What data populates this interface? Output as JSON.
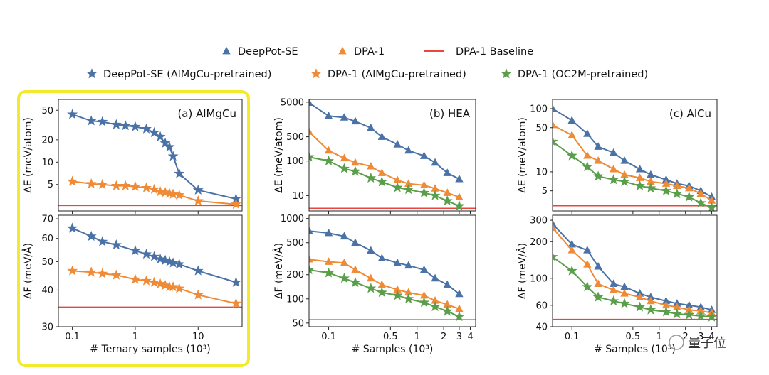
{
  "legend": {
    "row1": [
      {
        "label": "DeepPot-SE",
        "marker": "triangle",
        "color": "#4a72a6"
      },
      {
        "label": "DPA-1",
        "marker": "triangle",
        "color": "#ef8a36"
      },
      {
        "label": "DPA-1 Baseline",
        "marker": "line",
        "color": "#e8463e"
      }
    ],
    "row2": [
      {
        "label": "DeepPot-SE (AlMgCu-pretrained)",
        "marker": "star",
        "color": "#4a72a6"
      },
      {
        "label": "DPA-1 (AlMgCu-pretrained)",
        "marker": "star",
        "color": "#ef8a36"
      },
      {
        "label": "DPA-1 (OC2M-pretrained)",
        "marker": "star",
        "color": "#5a9e4b"
      }
    ]
  },
  "colors": {
    "blue": "#4a72a6",
    "orange": "#ef8a36",
    "green": "#5a9e4b",
    "red": "#e8463e",
    "highlight": "#f2ea2a"
  },
  "watermark": "量子位",
  "chart_data": [
    {
      "type": "line",
      "panel": "(a) AlMgCu",
      "metric": "energy",
      "title": "(a) AlMgCu",
      "xlabel": "# Ternary samples (10³)",
      "ylabel": "ΔE (meV/atom)",
      "xscale": "log",
      "yscale": "log",
      "xlim": [
        0.06,
        50
      ],
      "ylim": [
        2.2,
        70
      ],
      "xticks": [
        {
          "v": 0.1,
          "t": "0.1"
        },
        {
          "v": 1,
          "t": "1"
        },
        {
          "v": 10,
          "t": "10"
        }
      ],
      "yticks": [
        {
          "v": 5,
          "t": "5"
        },
        {
          "v": 10,
          "t": "10"
        },
        {
          "v": 20,
          "t": "20"
        },
        {
          "v": 50,
          "t": "50"
        }
      ],
      "baseline": 2.6,
      "series": [
        {
          "marker": "star",
          "color": "#4a72a6",
          "x": [
            0.1,
            0.2,
            0.3,
            0.5,
            0.7,
            1,
            1.5,
            2,
            2.5,
            3,
            3.5,
            4,
            5,
            10,
            40
          ],
          "y": [
            44,
            36,
            35,
            32,
            31,
            30,
            28,
            25,
            22,
            18,
            16,
            12,
            7,
            4.2,
            3.2
          ]
        },
        {
          "marker": "star",
          "color": "#ef8a36",
          "x": [
            0.1,
            0.2,
            0.3,
            0.5,
            0.7,
            1,
            1.5,
            2,
            2.5,
            3,
            3.5,
            4,
            5,
            10,
            40
          ],
          "y": [
            5.5,
            5.1,
            5.0,
            4.8,
            4.8,
            4.7,
            4.5,
            4.3,
            4.0,
            3.9,
            3.8,
            3.7,
            3.6,
            3.0,
            2.7
          ]
        }
      ]
    },
    {
      "type": "line",
      "panel": "(a) AlMgCu",
      "metric": "force",
      "title": "",
      "xlabel": "# Ternary samples (10³)",
      "ylabel": "ΔF (meV/Å)",
      "xscale": "log",
      "yscale": "log",
      "xlim": [
        0.06,
        50
      ],
      "ylim": [
        30,
        72
      ],
      "xticks": [
        {
          "v": 0.1,
          "t": "0.1"
        },
        {
          "v": 1,
          "t": "1"
        },
        {
          "v": 10,
          "t": "10"
        }
      ],
      "yticks": [
        {
          "v": 30,
          "t": "30"
        },
        {
          "v": 40,
          "t": "40"
        },
        {
          "v": 50,
          "t": "50"
        },
        {
          "v": 60,
          "t": "60"
        },
        {
          "v": 70,
          "t": "70"
        }
      ],
      "baseline": 35,
      "series": [
        {
          "marker": "star",
          "color": "#4a72a6",
          "x": [
            0.1,
            0.2,
            0.3,
            0.5,
            1,
            1.5,
            2,
            2.5,
            3,
            3.5,
            4,
            5,
            10,
            40
          ],
          "y": [
            65,
            61,
            58.5,
            57,
            54.5,
            53,
            52,
            51,
            50.5,
            50,
            49.5,
            49,
            46.5,
            42.5
          ]
        },
        {
          "marker": "star",
          "color": "#ef8a36",
          "x": [
            0.1,
            0.2,
            0.3,
            0.5,
            1,
            1.5,
            2,
            2.5,
            3,
            3.5,
            4,
            5,
            10,
            40
          ],
          "y": [
            46.5,
            46,
            45.5,
            45,
            43.5,
            43,
            42.5,
            42,
            41.5,
            41,
            41,
            40.5,
            38.5,
            36
          ]
        }
      ]
    },
    {
      "type": "line",
      "panel": "(b) HEA",
      "metric": "energy",
      "title": "(b) HEA",
      "xlabel": "# Samples (10³)",
      "ylabel": "ΔE (meV/atom)",
      "xscale": "log",
      "yscale": "log",
      "xlim": [
        0.06,
        4.6
      ],
      "ylim": [
        3.6,
        6000
      ],
      "xticks": [
        {
          "v": 0.1,
          "t": "0.1"
        },
        {
          "v": 0.5,
          "t": "0.5"
        },
        {
          "v": 1,
          "t": "1"
        },
        {
          "v": 2,
          "t": "2"
        },
        {
          "v": 3,
          "t": "3"
        },
        {
          "v": 4,
          "t": "4"
        }
      ],
      "yticks": [
        {
          "v": 10,
          "t": "10"
        },
        {
          "v": 100,
          "t": "100"
        },
        {
          "v": 500,
          "t": "500"
        },
        {
          "v": 5000,
          "t": "5000"
        }
      ],
      "baseline": 4.3,
      "series": [
        {
          "marker": "triangle",
          "color": "#4a72a6",
          "x": [
            0.06,
            0.1,
            0.15,
            0.2,
            0.3,
            0.4,
            0.6,
            0.8,
            1.2,
            1.6,
            2.2,
            3
          ],
          "y": [
            4800,
            2000,
            1800,
            1400,
            900,
            500,
            300,
            200,
            140,
            90,
            45,
            30
          ]
        },
        {
          "marker": "triangle",
          "color": "#ef8a36",
          "x": [
            0.06,
            0.1,
            0.15,
            0.2,
            0.3,
            0.4,
            0.6,
            0.8,
            1.2,
            1.6,
            2.2,
            3
          ],
          "y": [
            700,
            200,
            120,
            90,
            70,
            45,
            28,
            22,
            20,
            16,
            12,
            9
          ]
        },
        {
          "marker": "star",
          "color": "#5a9e4b",
          "x": [
            0.06,
            0.1,
            0.15,
            0.2,
            0.3,
            0.4,
            0.6,
            0.8,
            1.2,
            1.6,
            2.2,
            3
          ],
          "y": [
            130,
            100,
            60,
            50,
            32,
            25,
            17,
            15,
            12,
            10,
            7,
            5
          ]
        }
      ]
    },
    {
      "type": "line",
      "panel": "(b) HEA",
      "metric": "force",
      "title": "",
      "xlabel": "# Samples (10³)",
      "ylabel": "ΔF (meV/Å)",
      "xscale": "log",
      "yscale": "log",
      "xlim": [
        0.06,
        4.6
      ],
      "ylim": [
        45,
        1100
      ],
      "xticks": [
        {
          "v": 0.1,
          "t": "0.1"
        },
        {
          "v": 0.5,
          "t": "0.5"
        },
        {
          "v": 1,
          "t": "1"
        },
        {
          "v": 2,
          "t": "2"
        },
        {
          "v": 3,
          "t": "3"
        },
        {
          "v": 4,
          "t": "4"
        }
      ],
      "yticks": [
        {
          "v": 50,
          "t": "50"
        },
        {
          "v": 100,
          "t": "100"
        },
        {
          "v": 200,
          "t": "200"
        },
        {
          "v": 500,
          "t": "500"
        },
        {
          "v": 1000,
          "t": "1000"
        }
      ],
      "baseline": 55,
      "series": [
        {
          "marker": "triangle",
          "color": "#4a72a6",
          "x": [
            0.06,
            0.1,
            0.15,
            0.2,
            0.3,
            0.4,
            0.6,
            0.8,
            1.2,
            1.6,
            2.2,
            3
          ],
          "y": [
            700,
            660,
            600,
            500,
            400,
            320,
            280,
            260,
            230,
            180,
            150,
            115
          ]
        },
        {
          "marker": "triangle",
          "color": "#ef8a36",
          "x": [
            0.06,
            0.1,
            0.15,
            0.2,
            0.3,
            0.4,
            0.6,
            0.8,
            1.2,
            1.6,
            2.2,
            3
          ],
          "y": [
            310,
            290,
            280,
            230,
            180,
            150,
            130,
            120,
            110,
            95,
            85,
            75
          ]
        },
        {
          "marker": "star",
          "color": "#5a9e4b",
          "x": [
            0.06,
            0.1,
            0.15,
            0.2,
            0.3,
            0.4,
            0.6,
            0.8,
            1.2,
            1.6,
            2.2,
            3
          ],
          "y": [
            230,
            210,
            180,
            160,
            135,
            120,
            110,
            100,
            90,
            80,
            70,
            60
          ]
        }
      ]
    },
    {
      "type": "line",
      "panel": "(c) AlCu",
      "metric": "energy",
      "title": "(c) AlCu",
      "xlabel": "# Samples (10³)",
      "ylabel": "ΔE (meV/atom)",
      "xscale": "log",
      "yscale": "log",
      "xlim": [
        0.06,
        4.6
      ],
      "ylim": [
        2.4,
        140
      ],
      "xticks": [
        {
          "v": 0.1,
          "t": "0.1"
        },
        {
          "v": 0.5,
          "t": "0.5"
        },
        {
          "v": 1,
          "t": "1"
        },
        {
          "v": 2,
          "t": "2"
        },
        {
          "v": 3,
          "t": "3"
        },
        {
          "v": 4,
          "t": "4"
        }
      ],
      "yticks": [
        {
          "v": 5,
          "t": "5"
        },
        {
          "v": 10,
          "t": "10"
        },
        {
          "v": 50,
          "t": "50"
        },
        {
          "v": 100,
          "t": "100"
        }
      ],
      "baseline": 2.9,
      "series": [
        {
          "marker": "triangle",
          "color": "#4a72a6",
          "x": [
            0.06,
            0.1,
            0.15,
            0.2,
            0.3,
            0.4,
            0.6,
            0.8,
            1.2,
            1.6,
            2.2,
            3,
            4
          ],
          "y": [
            100,
            65,
            40,
            25,
            20,
            15,
            11,
            9,
            7.5,
            6.5,
            6,
            5,
            4
          ]
        },
        {
          "marker": "triangle",
          "color": "#ef8a36",
          "x": [
            0.06,
            0.1,
            0.15,
            0.2,
            0.3,
            0.4,
            0.6,
            0.8,
            1.2,
            1.6,
            2.2,
            3,
            4
          ],
          "y": [
            55,
            38,
            18,
            15,
            11,
            9,
            8,
            7,
            6.5,
            6,
            5.5,
            4.5,
            3.5
          ]
        },
        {
          "marker": "star",
          "color": "#5a9e4b",
          "x": [
            0.06,
            0.1,
            0.15,
            0.2,
            0.3,
            0.4,
            0.6,
            0.8,
            1.2,
            1.6,
            2.2,
            3,
            4
          ],
          "y": [
            30,
            18,
            12,
            8.5,
            7.5,
            7,
            6,
            5.5,
            5,
            4.5,
            4,
            3.2,
            2.7
          ]
        }
      ]
    },
    {
      "type": "line",
      "panel": "(c) AlCu",
      "metric": "force",
      "title": "",
      "xlabel": "# Samples (10³)",
      "ylabel": "ΔF (meV/Å)",
      "xscale": "log",
      "yscale": "log",
      "xlim": [
        0.06,
        4.6
      ],
      "ylim": [
        40,
        330
      ],
      "xticks": [
        {
          "v": 0.1,
          "t": "0.1"
        },
        {
          "v": 0.5,
          "t": "0.5"
        },
        {
          "v": 1,
          "t": "1"
        },
        {
          "v": 2,
          "t": "2"
        },
        {
          "v": 3,
          "t": "3"
        },
        {
          "v": 4,
          "t": "4"
        }
      ],
      "yticks": [
        {
          "v": 40,
          "t": "40"
        },
        {
          "v": 60,
          "t": "60"
        },
        {
          "v": 100,
          "t": "100"
        },
        {
          "v": 200,
          "t": "200"
        },
        {
          "v": 300,
          "t": "300"
        }
      ],
      "baseline": 46,
      "series": [
        {
          "marker": "triangle",
          "color": "#4a72a6",
          "x": [
            0.06,
            0.1,
            0.15,
            0.2,
            0.3,
            0.4,
            0.6,
            0.8,
            1.2,
            1.6,
            2.2,
            3,
            4
          ],
          "y": [
            280,
            190,
            170,
            125,
            90,
            85,
            75,
            70,
            65,
            62,
            60,
            58,
            55
          ]
        },
        {
          "marker": "triangle",
          "color": "#ef8a36",
          "x": [
            0.06,
            0.1,
            0.15,
            0.2,
            0.3,
            0.4,
            0.6,
            0.8,
            1.2,
            1.6,
            2.2,
            3,
            4
          ],
          "y": [
            260,
            170,
            130,
            90,
            80,
            75,
            70,
            65,
            60,
            58,
            55,
            54,
            52
          ]
        },
        {
          "marker": "star",
          "color": "#5a9e4b",
          "x": [
            0.06,
            0.1,
            0.15,
            0.2,
            0.3,
            0.4,
            0.6,
            0.8,
            1.2,
            1.6,
            2.2,
            3,
            4
          ],
          "y": [
            150,
            115,
            85,
            70,
            65,
            62,
            58,
            55,
            53,
            51,
            50,
            49,
            48
          ]
        }
      ]
    }
  ]
}
